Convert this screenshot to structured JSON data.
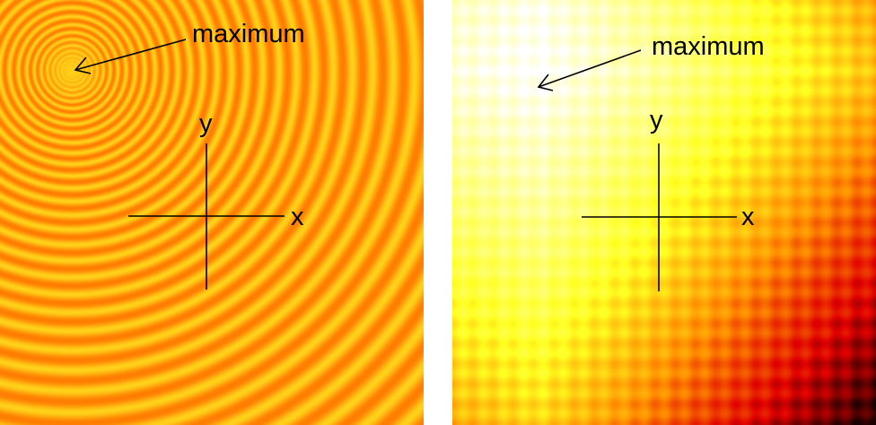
{
  "panels": [
    {
      "id": "left",
      "maximum_label": "maximum",
      "x_axis_label": "x",
      "y_axis_label": "y",
      "pattern": "concentric-rings",
      "colors": {
        "light": "#FFD21A",
        "dark": "#FF7800"
      }
    },
    {
      "id": "right",
      "maximum_label": "maximum",
      "x_axis_label": "x",
      "y_axis_label": "y",
      "pattern": "grid-heatmap",
      "colors": {
        "white": "#FFFFFF",
        "yellow": "#FFFF20",
        "orange": "#FF8C00",
        "red": "#E00000",
        "black": "#1A0000"
      }
    }
  ]
}
